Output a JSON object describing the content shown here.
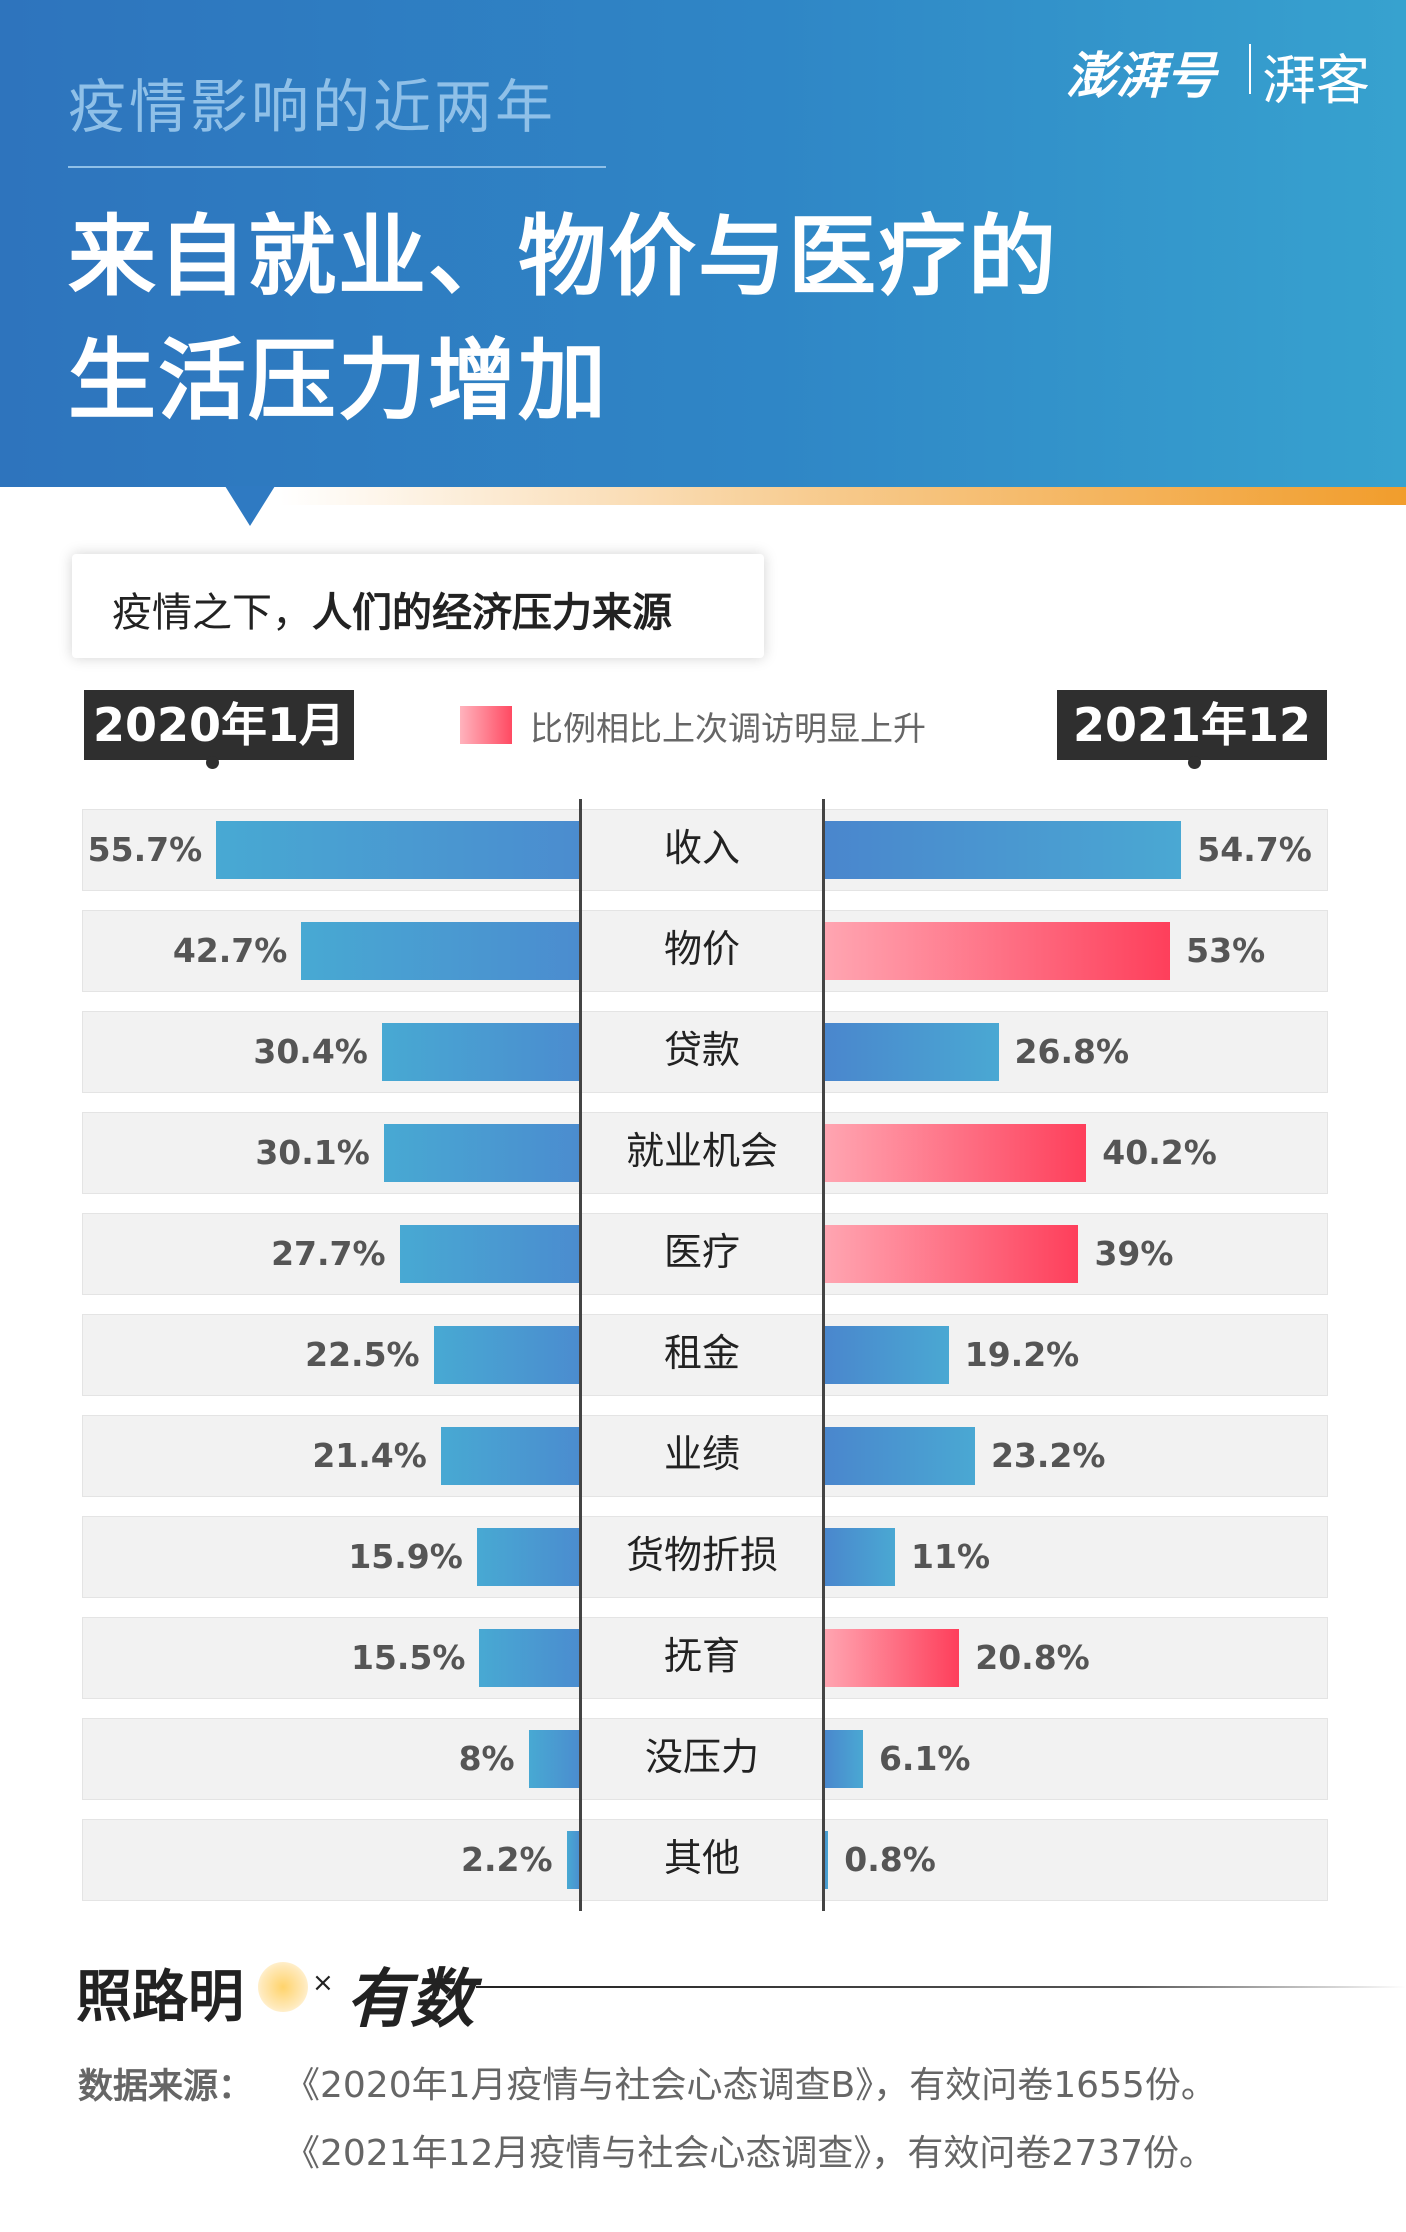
{
  "header": {
    "subtitle": "疫情影响的近两年",
    "title_line1": "来自就业、物价与医疗的",
    "title_line2": "生活压力增加",
    "logo_main": "澎湃号",
    "logo_sub": "湃客"
  },
  "section": {
    "prefix": "疫情之下，",
    "bold": "人们的经济压力来源"
  },
  "colors": {
    "header_blue": "#2f7ac2",
    "bar_blue": "#4a9bd1",
    "bar_red": "#fe4a62",
    "dark_tag": "#2f2f2f"
  },
  "chart_data": {
    "type": "bar",
    "orientation": "horizontal-butterfly",
    "title": "疫情之下，人们的经济压力来源",
    "left_label": "2020年1月",
    "right_label": "2021年12月",
    "legend": "比例相比上次调访明显上升",
    "unit": "%",
    "xlim": [
      0,
      60
    ],
    "categories": [
      "收入",
      "物价",
      "贷款",
      "就业机会",
      "医疗",
      "租金",
      "业绩",
      "货物折损",
      "抚育",
      "没压力",
      "其他"
    ],
    "series": [
      {
        "name": "2020年1月",
        "values": [
          55.7,
          42.7,
          30.4,
          30.1,
          27.7,
          22.5,
          21.4,
          15.9,
          15.5,
          8,
          2.2
        ],
        "labels": [
          "55.7%",
          "42.7%",
          "30.4%",
          "30.1%",
          "27.7%",
          "22.5%",
          "21.4%",
          "15.9%",
          "15.5%",
          "8%",
          "2.2%"
        ]
      },
      {
        "name": "2021年12月",
        "values": [
          54.7,
          53,
          26.8,
          40.2,
          39,
          19.2,
          23.2,
          11,
          20.8,
          6.1,
          0.8
        ],
        "labels": [
          "54.7%",
          "53%",
          "26.8%",
          "40.2%",
          "39%",
          "19.2%",
          "23.2%",
          "11%",
          "20.8%",
          "6.1%",
          "0.8%"
        ],
        "highlight": [
          false,
          true,
          false,
          true,
          true,
          false,
          false,
          false,
          true,
          false,
          false
        ]
      }
    ]
  },
  "brand": {
    "left": "照路明",
    "times": "×",
    "right": "有数"
  },
  "source": {
    "label": "数据来源：",
    "line1": "《2020年1月疫情与社会心态调查B》，有效问卷1655份。",
    "line2": "《2021年12月疫情与社会心态调查》，有效问卷2737份。"
  }
}
